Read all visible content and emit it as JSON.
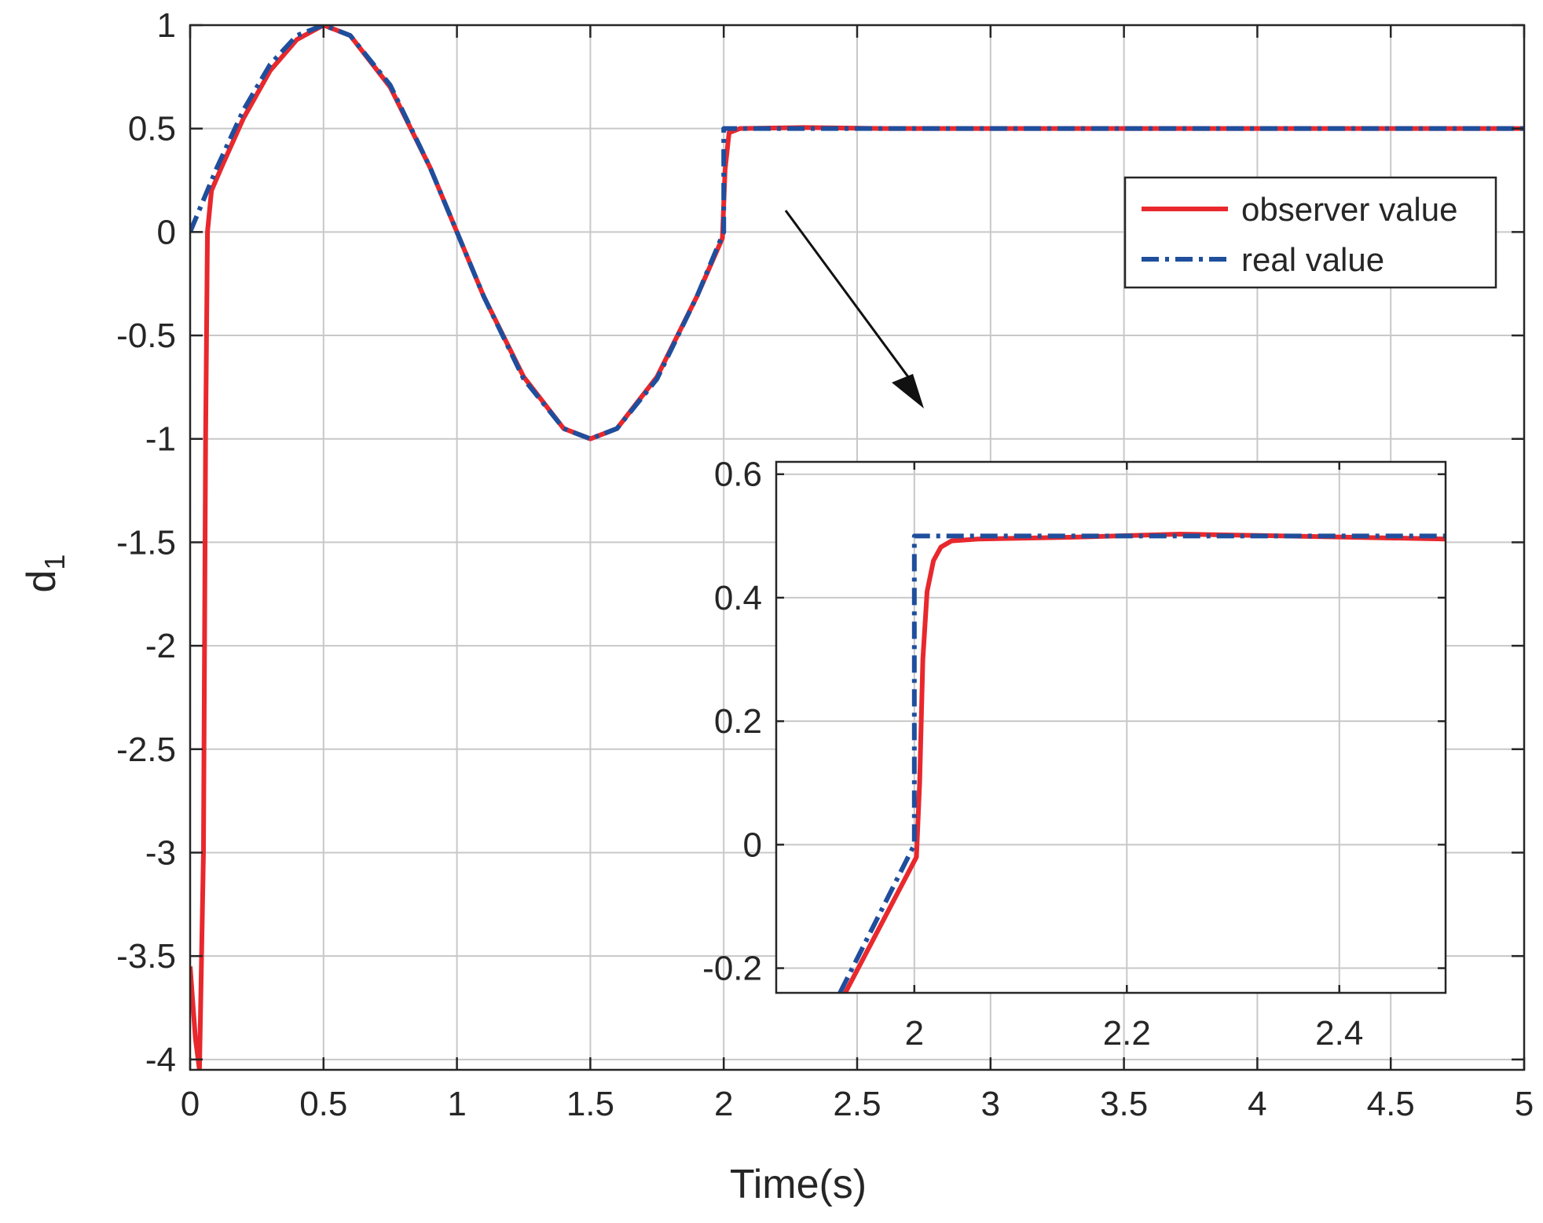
{
  "chart_data": [
    {
      "type": "line",
      "role": "main",
      "xlabel": "Time(s)",
      "ylabel": "d",
      "ylabel_subscript": "1",
      "xlim": [
        0,
        5
      ],
      "ylim": [
        -4.05,
        1
      ],
      "xticks": [
        0,
        0.5,
        1,
        1.5,
        2,
        2.5,
        3,
        3.5,
        4,
        4.5,
        5
      ],
      "xtick_labels": [
        "0",
        "0.5",
        "1",
        "1.5",
        "2",
        "2.5",
        "3",
        "3.5",
        "4",
        "4.5",
        "5"
      ],
      "yticks": [
        1,
        0.5,
        0,
        -0.5,
        -1,
        -1.5,
        -2,
        -2.5,
        -3,
        -3.5,
        -4
      ],
      "ytick_labels": [
        "1",
        "0.5",
        "0",
        "-0.5",
        "-1",
        "-1.5",
        "-2",
        "-2.5",
        "-3",
        "-3.5",
        "-4"
      ],
      "grid": true,
      "legend_position": "top-right",
      "series": [
        {
          "name": "observer value",
          "color": "#e8282d",
          "style": "solid",
          "points": [
            [
              0,
              -3.55
            ],
            [
              0.02,
              -3.9
            ],
            [
              0.035,
              -4.05
            ],
            [
              0.05,
              -3.0
            ],
            [
              0.058,
              -1.0
            ],
            [
              0.065,
              0.0
            ],
            [
              0.08,
              0.2
            ],
            [
              0.12,
              0.32
            ],
            [
              0.2,
              0.55
            ],
            [
              0.3,
              0.78
            ],
            [
              0.4,
              0.93
            ],
            [
              0.5,
              1.0
            ],
            [
              0.6,
              0.95
            ],
            [
              0.75,
              0.7
            ],
            [
              0.9,
              0.31
            ],
            [
              1.0,
              0.0
            ],
            [
              1.1,
              -0.31
            ],
            [
              1.25,
              -0.7
            ],
            [
              1.4,
              -0.95
            ],
            [
              1.5,
              -1.0
            ],
            [
              1.6,
              -0.95
            ],
            [
              1.75,
              -0.7
            ],
            [
              1.9,
              -0.31
            ],
            [
              1.995,
              -0.03
            ],
            [
              2.005,
              0.3
            ],
            [
              2.02,
              0.48
            ],
            [
              2.06,
              0.5
            ],
            [
              2.3,
              0.505
            ],
            [
              2.6,
              0.5
            ],
            [
              5,
              0.5
            ]
          ]
        },
        {
          "name": "real value",
          "color": "#1f4e9c",
          "style": "dashdot",
          "points": [
            [
              0,
              0.0
            ],
            [
              0.1,
              0.31
            ],
            [
              0.2,
              0.59
            ],
            [
              0.3,
              0.81
            ],
            [
              0.4,
              0.95
            ],
            [
              0.5,
              1.0
            ],
            [
              0.6,
              0.95
            ],
            [
              0.75,
              0.71
            ],
            [
              0.9,
              0.31
            ],
            [
              1.0,
              0.0
            ],
            [
              1.1,
              -0.31
            ],
            [
              1.25,
              -0.71
            ],
            [
              1.4,
              -0.95
            ],
            [
              1.5,
              -1.0
            ],
            [
              1.6,
              -0.95
            ],
            [
              1.75,
              -0.71
            ],
            [
              1.9,
              -0.31
            ],
            [
              2.0,
              0.0
            ],
            [
              2.0,
              0.5
            ],
            [
              5,
              0.5
            ]
          ]
        }
      ]
    },
    {
      "type": "line",
      "role": "inset",
      "xlim": [
        1.87,
        2.5
      ],
      "ylim": [
        -0.24,
        0.62
      ],
      "xticks": [
        2,
        2.2,
        2.4
      ],
      "xtick_labels": [
        "2",
        "2.2",
        "2.4"
      ],
      "yticks": [
        0.6,
        0.4,
        0.2,
        0,
        -0.2
      ],
      "ytick_labels": [
        "0.6",
        "0.4",
        "0.2",
        "0",
        "-0.2"
      ],
      "grid": true,
      "series": [
        {
          "name": "observer value",
          "color": "#e8282d",
          "style": "solid",
          "points": [
            [
              1.935,
              -0.24
            ],
            [
              2.002,
              -0.02
            ],
            [
              2.005,
              0.1
            ],
            [
              2.008,
              0.3
            ],
            [
              2.012,
              0.41
            ],
            [
              2.018,
              0.46
            ],
            [
              2.025,
              0.482
            ],
            [
              2.035,
              0.492
            ],
            [
              2.06,
              0.495
            ],
            [
              2.15,
              0.498
            ],
            [
              2.25,
              0.503
            ],
            [
              2.35,
              0.5
            ],
            [
              2.5,
              0.495
            ]
          ]
        },
        {
          "name": "real value",
          "color": "#1f4e9c",
          "style": "dashdot",
          "points": [
            [
              1.93,
              -0.24
            ],
            [
              2.0,
              0.0
            ],
            [
              2.0,
              0.5
            ],
            [
              2.5,
              0.5
            ]
          ]
        }
      ]
    }
  ]
}
